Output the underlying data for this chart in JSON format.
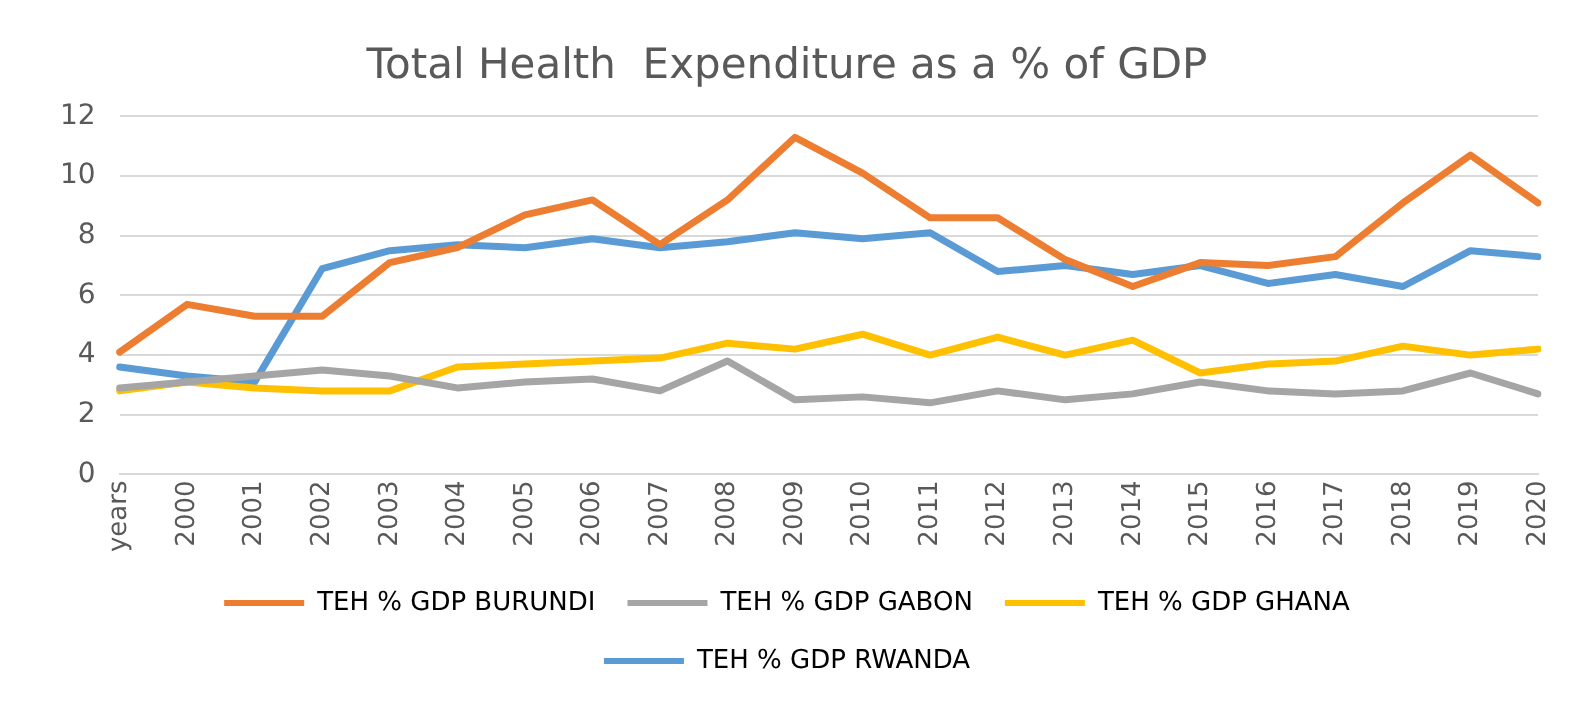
{
  "chart_data": {
    "type": "line",
    "title": "Total Health  Expenditure as a % of GDP",
    "categories": [
      "years",
      "2000",
      "2001",
      "2002",
      "2003",
      "2004",
      "2005",
      "2006",
      "2007",
      "2008",
      "2009",
      "2010",
      "2011",
      "2012",
      "2013",
      "2014",
      "2015",
      "2016",
      "2017",
      "2018",
      "2019",
      "2020"
    ],
    "series": [
      {
        "name": "TEH % GDP BURUNDI",
        "color": "#ed7d31",
        "values": [
          4.1,
          5.7,
          5.3,
          5.3,
          7.1,
          7.6,
          8.7,
          9.2,
          7.7,
          9.2,
          11.3,
          10.1,
          8.6,
          8.6,
          7.2,
          6.3,
          7.1,
          7.0,
          7.3,
          9.1,
          10.7,
          9.1
        ]
      },
      {
        "name": "TEH % GDP GABON",
        "color": "#a5a5a5",
        "values": [
          2.9,
          3.1,
          3.3,
          3.5,
          3.3,
          2.9,
          3.1,
          3.2,
          2.8,
          3.8,
          2.5,
          2.6,
          2.4,
          2.8,
          2.5,
          2.7,
          3.1,
          2.8,
          2.7,
          2.8,
          3.4,
          2.7
        ]
      },
      {
        "name": "TEH % GDP GHANA",
        "color": "#ffc000",
        "values": [
          2.8,
          3.1,
          2.9,
          2.8,
          2.8,
          3.6,
          3.7,
          3.8,
          3.9,
          4.4,
          4.2,
          4.7,
          4.0,
          4.6,
          4.0,
          4.5,
          3.4,
          3.7,
          3.8,
          4.3,
          4.0,
          4.2
        ]
      },
      {
        "name": "TEH % GDP RWANDA",
        "color": "#5b9bd5",
        "values": [
          3.6,
          3.3,
          3.1,
          6.9,
          7.5,
          7.7,
          7.6,
          7.9,
          7.6,
          7.8,
          8.1,
          7.9,
          8.1,
          6.8,
          7.0,
          6.7,
          7.0,
          6.4,
          6.7,
          6.3,
          7.5,
          7.3
        ]
      }
    ],
    "ylim": [
      0,
      12
    ],
    "yticks": [
      0,
      2,
      4,
      6,
      8,
      10,
      12
    ],
    "grid": "y",
    "legend": "bottom",
    "marker": "none",
    "line_style": "solid"
  }
}
